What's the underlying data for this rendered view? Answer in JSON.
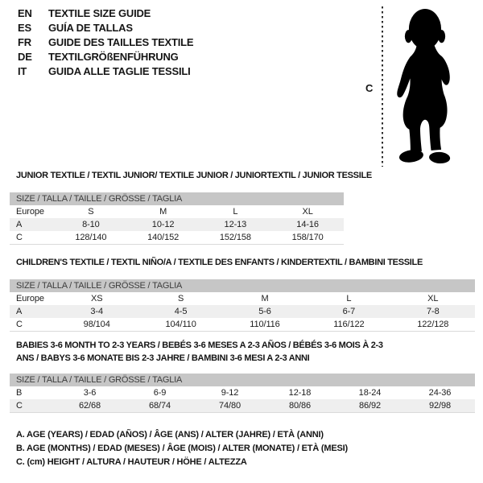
{
  "header": {
    "languages": [
      {
        "code": "EN",
        "title": "TEXTILE SIZE GUIDE"
      },
      {
        "code": "ES",
        "title": "GUÍA DE TALLAS"
      },
      {
        "code": "FR",
        "title": "GUIDE DES TAILLES TEXTILE"
      },
      {
        "code": "DE",
        "title": "TEXTILGRÖßENFÜHRUNG"
      },
      {
        "code": "IT",
        "title": "GUIDA ALLE TAGLIE TESSILI"
      }
    ]
  },
  "figure": {
    "height_label": "C",
    "silhouette": "toddler-standing"
  },
  "tables": [
    {
      "title": "JUNIOR TEXTILE / TEXTIL JUNIOR/ TEXTILE JUNIOR / JUNIORTEXTIL / JUNIOR TESSILE",
      "size_header": "SIZE / TALLA / TAILLE / GRÖSSE / TAGLIA",
      "region_label": "Europe",
      "columns": [
        "S",
        "M",
        "L",
        "XL"
      ],
      "rows": [
        {
          "label": "A",
          "values": [
            "8-10",
            "10-12",
            "12-13",
            "14-16"
          ],
          "shaded": true
        },
        {
          "label": "C",
          "values": [
            "128/140",
            "140/152",
            "152/158",
            "158/170"
          ],
          "shaded": false
        }
      ]
    },
    {
      "title": "CHILDREN'S TEXTILE / TEXTIL NIÑO/A / TEXTILE DES ENFANTS / KINDERTEXTIL / BAMBINI TESSILE",
      "size_header": "SIZE / TALLA / TAILLE / GRÖSSE / TAGLIA",
      "region_label": "Europe",
      "columns": [
        "XS",
        "S",
        "M",
        "L",
        "XL"
      ],
      "rows": [
        {
          "label": "A",
          "values": [
            "3-4",
            "4-5",
            "5-6",
            "6-7",
            "7-8"
          ],
          "shaded": true
        },
        {
          "label": "C",
          "values": [
            "98/104",
            "104/110",
            "110/116",
            "116/122",
            "122/128"
          ],
          "shaded": false
        }
      ]
    },
    {
      "title": "BABIES 3-6 MONTH TO 2-3 YEARS / BEBÉS 3-6 MESES A 2-3 AÑOS / BÉBÉS 3-6 MOIS À 2-3 ANS / BABYS 3-6 MONATE BIS 2-3 JAHRE / BAMBINI 3-6 MESI A 2-3 ANNI",
      "size_header": "SIZE / TALLA / TAILLE / GRÖSSE / TAGLIA",
      "rows": [
        {
          "label": "B",
          "values": [
            "3-6",
            "6-9",
            "9-12",
            "12-18",
            "18-24",
            "24-36"
          ],
          "shaded": false
        },
        {
          "label": "C",
          "values": [
            "62/68",
            "68/74",
            "74/80",
            "80/86",
            "86/92",
            "92/98"
          ],
          "shaded": true
        }
      ]
    }
  ],
  "footnotes": [
    "A. AGE (YEARS) / EDAD (AÑOS) / ÂGE (ANS) / ALTER (JAHRE) / ETÀ (ANNI)",
    "B. AGE (MONTHS) / EDAD (MESES) / ÂGE (MOIS) / ALTER (MONATE) / ETÀ (MESI)",
    "C. (cm) HEIGHT / ALTURA / HAUTEUR / HÖHE / ALTEZZA"
  ],
  "colors": {
    "background": "#ffffff",
    "text": "#1d1d1d",
    "strip_bg": "#c6c6c6",
    "strip_text": "#3c3c3c",
    "shaded_row": "#efefef",
    "silhouette": "#000000"
  }
}
